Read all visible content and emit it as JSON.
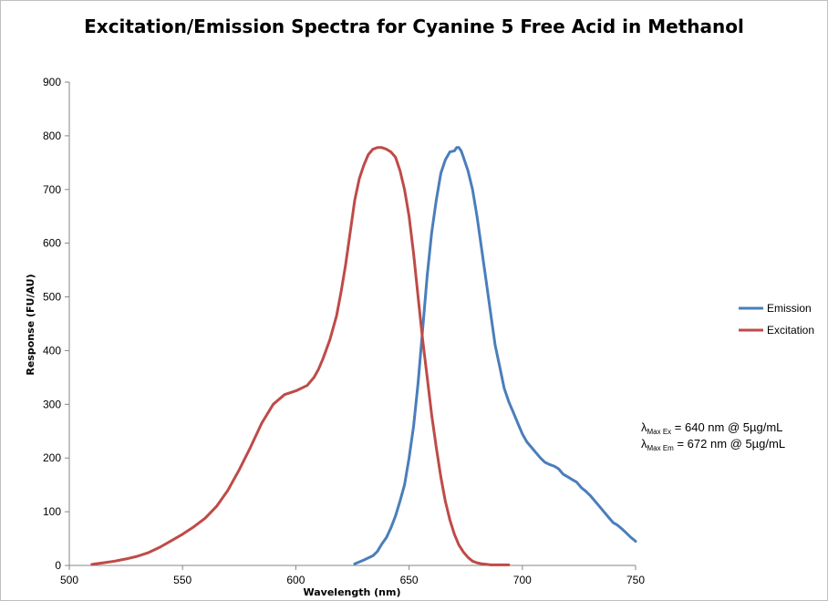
{
  "chart_data": {
    "type": "line",
    "title": "Excitation/Emission Spectra for Cyanine 5 Free Acid in Methanol",
    "xlabel": "Wavelength (nm)",
    "ylabel": "Response (FU/AU)",
    "xlim": [
      500,
      750
    ],
    "ylim": [
      0,
      900
    ],
    "xticks": [
      "500",
      "550",
      "600",
      "650",
      "700",
      "750"
    ],
    "yticks": [
      "0",
      "100",
      "200",
      "300",
      "400",
      "500",
      "600",
      "700",
      "800",
      "900"
    ],
    "grid": false,
    "legend_position": "right",
    "series": [
      {
        "name": "Emission",
        "color": "#4a7ebb",
        "x": [
          626,
          630,
          634,
          636,
          638,
          640,
          642,
          644,
          646,
          648,
          650,
          652,
          654,
          656,
          658,
          660,
          662,
          664,
          666,
          668,
          670,
          671,
          672,
          673,
          674,
          676,
          678,
          680,
          682,
          684,
          686,
          688,
          690,
          692,
          694,
          696,
          698,
          700,
          702,
          704,
          706,
          708,
          710,
          712,
          714,
          716,
          718,
          720,
          722,
          724,
          726,
          728,
          730,
          732,
          734,
          736,
          738,
          740,
          742,
          744,
          746,
          748,
          750
        ],
        "y": [
          3,
          10,
          18,
          26,
          40,
          52,
          70,
          92,
          120,
          150,
          200,
          260,
          340,
          440,
          540,
          620,
          680,
          730,
          755,
          770,
          772,
          778,
          778,
          772,
          760,
          735,
          700,
          650,
          590,
          530,
          470,
          410,
          370,
          330,
          305,
          285,
          265,
          245,
          230,
          220,
          210,
          200,
          192,
          188,
          185,
          180,
          170,
          165,
          160,
          155,
          145,
          138,
          130,
          120,
          110,
          100,
          90,
          80,
          75,
          68,
          60,
          52,
          45
        ]
      },
      {
        "name": "Excitation",
        "color": "#be4b48",
        "x": [
          510,
          515,
          520,
          525,
          530,
          535,
          540,
          545,
          550,
          555,
          560,
          565,
          570,
          575,
          580,
          585,
          590,
          595,
          600,
          605,
          608,
          610,
          612,
          615,
          618,
          620,
          622,
          624,
          626,
          628,
          630,
          632,
          634,
          636,
          638,
          640,
          642,
          644,
          646,
          648,
          650,
          652,
          654,
          656,
          658,
          660,
          662,
          664,
          666,
          668,
          670,
          672,
          674,
          676,
          678,
          680,
          682,
          684,
          686,
          688,
          690,
          692,
          694
        ],
        "y": [
          2,
          5,
          8,
          12,
          17,
          24,
          34,
          46,
          58,
          72,
          88,
          110,
          140,
          178,
          220,
          265,
          300,
          318,
          325,
          335,
          350,
          365,
          385,
          420,
          465,
          510,
          560,
          620,
          680,
          720,
          745,
          765,
          775,
          778,
          778,
          775,
          770,
          760,
          735,
          700,
          650,
          580,
          500,
          420,
          350,
          280,
          220,
          165,
          120,
          85,
          58,
          38,
          25,
          15,
          8,
          5,
          3,
          2,
          1,
          1,
          1,
          1,
          1
        ]
      }
    ],
    "annotations": [
      {
        "lambda": "λ",
        "sub": "Max Ex",
        "text": " = 640 nm @ 5µg/mL"
      },
      {
        "lambda": "λ",
        "sub": "Max Em",
        "text": " = 672 nm @ 5µg/mL"
      }
    ]
  }
}
